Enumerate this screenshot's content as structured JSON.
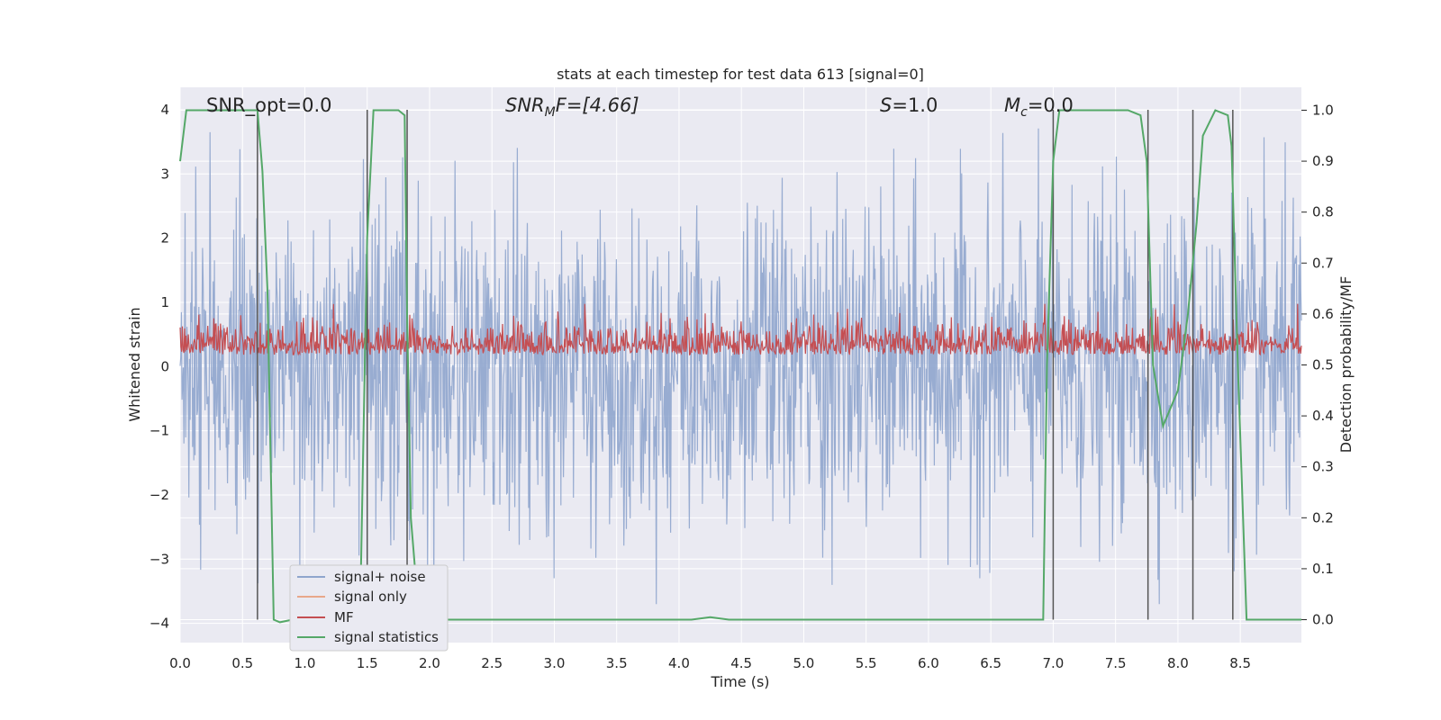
{
  "chart_data": {
    "type": "line",
    "title": "stats at each timestep for test data 613 [signal=0]",
    "xlabel": "Time (s)",
    "ylabel": "Whitened strain",
    "y2label": "Detection probability/MF",
    "xlim": [
      0.0,
      8.99
    ],
    "ylim": [
      -4.3,
      4.35
    ],
    "y2lim": [
      -0.045,
      1.045
    ],
    "x_ticks": [
      "0.0",
      "0.5",
      "1.0",
      "1.5",
      "2.0",
      "2.5",
      "3.0",
      "3.5",
      "4.0",
      "4.5",
      "5.0",
      "5.5",
      "6.0",
      "6.5",
      "7.0",
      "7.5",
      "8.0",
      "8.5"
    ],
    "y_ticks": [
      "4",
      "3",
      "2",
      "1",
      "0",
      "−1",
      "−2",
      "−3",
      "−4"
    ],
    "y2_ticks": [
      "1.0",
      "0.9",
      "0.8",
      "0.7",
      "0.6",
      "0.5",
      "0.4",
      "0.3",
      "0.2",
      "0.1",
      "0.0"
    ],
    "grid": true,
    "legend_position": "lower-left",
    "annotations": {
      "snr_opt": "SNR_opt=0.0",
      "snr_mf_base": "SNR",
      "snr_mf_sub": "M",
      "snr_mf_rest": "F=[4.66]",
      "s_var": "S",
      "s_rest": "=1.0",
      "mc_base": "M",
      "mc_sub": "c",
      "mc_rest": "=0.0"
    },
    "series": [
      {
        "name": "signal+ noise",
        "color": "#8fa5cd",
        "axis": "left",
        "approx_range": [
          -3.7,
          3.9
        ],
        "note_values": "dense noise, envelope shown"
      },
      {
        "name": "signal only",
        "color": "#e8a88a",
        "axis": "left",
        "values": []
      },
      {
        "name": "MF",
        "color": "#c44e52",
        "axis": "right",
        "approx_range": [
          0.48,
          0.62
        ]
      },
      {
        "name": "signal statistics",
        "color": "#55a868",
        "axis": "right",
        "x": [
          0.0,
          0.05,
          0.1,
          0.3,
          0.55,
          0.6,
          0.62,
          0.66,
          0.7,
          0.75,
          0.8,
          0.9,
          1.3,
          1.45,
          1.5,
          1.55,
          1.65,
          1.75,
          1.8,
          1.82,
          1.85,
          1.9,
          1.95,
          2.5,
          4.1,
          4.25,
          4.4,
          6.8,
          6.92,
          6.95,
          7.0,
          7.05,
          7.3,
          7.6,
          7.7,
          7.75,
          7.8,
          7.88,
          8.0,
          8.08,
          8.15,
          8.2,
          8.3,
          8.4,
          8.43,
          8.48,
          8.55,
          8.99
        ],
        "y": [
          0.9,
          1.0,
          1.0,
          1.0,
          1.0,
          1.0,
          1.0,
          0.88,
          0.65,
          0.0,
          -0.005,
          0.0,
          0.0,
          0.1,
          0.75,
          1.0,
          1.0,
          1.0,
          0.99,
          0.6,
          0.2,
          0.05,
          0.0,
          0.0,
          0.0,
          0.005,
          0.0,
          0.0,
          0.0,
          0.5,
          0.9,
          1.0,
          1.0,
          1.0,
          0.99,
          0.9,
          0.5,
          0.38,
          0.45,
          0.6,
          0.78,
          0.95,
          1.0,
          0.99,
          0.93,
          0.5,
          0.0,
          0.0
        ]
      }
    ],
    "vertical_lines_x": [
      0.62,
      1.5,
      1.82,
      7.0,
      7.76,
      8.12,
      8.44
    ],
    "vertical_line_color": "#555555"
  }
}
